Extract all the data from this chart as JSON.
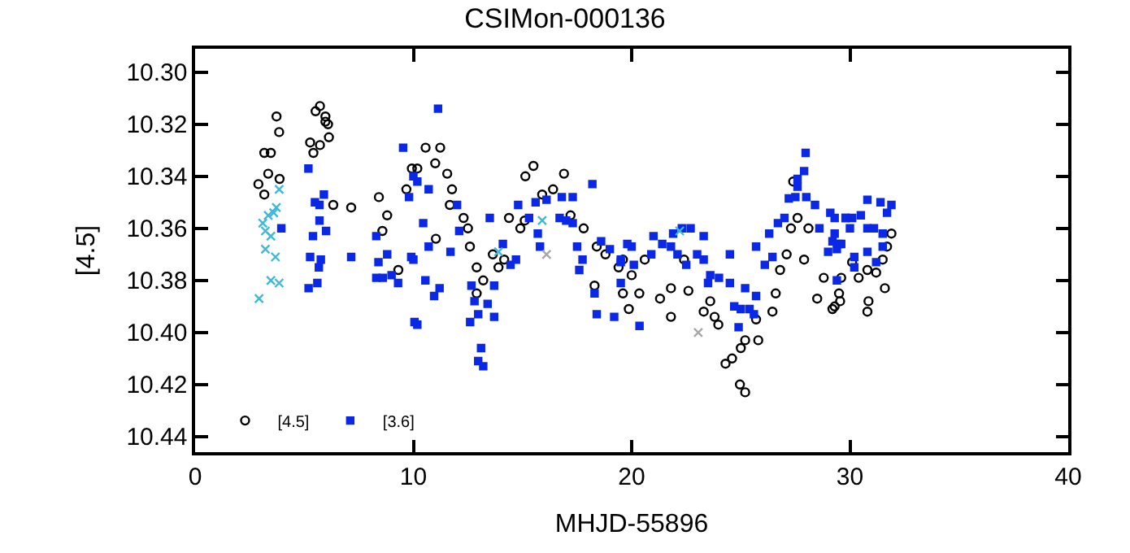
{
  "chart_data": {
    "type": "scatter",
    "title": "CSIMon-000136",
    "xlabel": "MHJD-55896",
    "ylabel": "[4.5]",
    "xlim": [
      0,
      40
    ],
    "xticks": [
      0,
      10,
      20,
      30,
      40
    ],
    "ylim": [
      10.446,
      10.291
    ],
    "yticks": [
      {
        "value": 10.3,
        "label": "10.30"
      },
      {
        "value": 10.32,
        "label": "10.32"
      },
      {
        "value": 10.34,
        "label": "10.34"
      },
      {
        "value": 10.36,
        "label": "10.36"
      },
      {
        "value": 10.38,
        "label": "10.38"
      },
      {
        "value": 10.4,
        "label": "10.40"
      },
      {
        "value": 10.42,
        "label": "10.42"
      },
      {
        "value": 10.44,
        "label": "10.44"
      }
    ],
    "legend": "bottom left",
    "series": [
      {
        "name": "[4.5]",
        "color": "#000000",
        "marker": "circle",
        "x": [
          3.73,
          3.85,
          3.17,
          3.47,
          3.35,
          3.17,
          2.9,
          3.87,
          5.72,
          5.52,
          5.97,
          6.09,
          5.97,
          6.13,
          5.27,
          5.42,
          5.72,
          6.33,
          7.15,
          8.42,
          8.8,
          8.58,
          9.31,
          9.68,
          9.93,
          10.56,
          11.23,
          11.0,
          10.18,
          11.55,
          11.77,
          11.67,
          12.3,
          12.5,
          11.03,
          12.59,
          12.9,
          12.9,
          13.2,
          13.64,
          14.16,
          13.9,
          14.38,
          14.9,
          15.1,
          15.13,
          15.5,
          16.4,
          16.9,
          15.9,
          17.2,
          17.8,
          18.4,
          18.8,
          18.3,
          19.4,
          19.87,
          19.6,
          19.6,
          20.0,
          20.35,
          20.6,
          21.3,
          21.8,
          21.8,
          22.4,
          22.6,
          23.3,
          23.97,
          23.6,
          23.8,
          24.3,
          24.6,
          25.0,
          25.2,
          25.8,
          24.96,
          25.2,
          25.7,
          26.45,
          26.6,
          26.8,
          27.1,
          27.3,
          27.6,
          27.4,
          28.1,
          27.9,
          28.5,
          28.8,
          29.3,
          29.5,
          29.2,
          29.55,
          29.6,
          30.1,
          30.4,
          30.8,
          31.2,
          31.5,
          31.7,
          31.9,
          30.85,
          30.8,
          31.6
        ],
        "values": [
          10.317,
          10.323,
          10.331,
          10.331,
          10.339,
          10.347,
          10.343,
          10.341,
          10.313,
          10.315,
          10.317,
          10.32,
          10.319,
          10.325,
          10.327,
          10.331,
          10.328,
          10.351,
          10.352,
          10.348,
          10.355,
          10.361,
          10.376,
          10.345,
          10.337,
          10.329,
          10.329,
          10.335,
          10.337,
          10.339,
          10.345,
          10.351,
          10.356,
          10.36,
          10.364,
          10.367,
          10.375,
          10.385,
          10.38,
          10.37,
          10.372,
          10.375,
          10.356,
          10.36,
          10.357,
          10.34,
          10.336,
          10.345,
          10.339,
          10.347,
          10.355,
          10.36,
          10.367,
          10.37,
          10.382,
          10.375,
          10.391,
          10.385,
          10.372,
          10.378,
          10.385,
          10.372,
          10.387,
          10.383,
          10.394,
          10.372,
          10.384,
          10.392,
          10.397,
          10.388,
          10.394,
          10.412,
          10.41,
          10.406,
          10.403,
          10.403,
          10.42,
          10.423,
          10.395,
          10.392,
          10.385,
          10.376,
          10.37,
          10.36,
          10.356,
          10.342,
          10.36,
          10.372,
          10.387,
          10.379,
          10.39,
          10.385,
          10.391,
          10.388,
          10.379,
          10.373,
          10.379,
          10.376,
          10.377,
          10.372,
          10.367,
          10.362,
          10.388,
          10.392,
          10.383
        ]
      },
      {
        "name": "[3.6]",
        "color": "#0a28e6",
        "marker": "square",
        "x": [
          5.19,
          5.49,
          5.7,
          5.9,
          5.7,
          6.0,
          5.4,
          3.95,
          5.27,
          5.76,
          5.67,
          5.2,
          5.6,
          7.15,
          8.3,
          8.4,
          8.8,
          9.0,
          8.6,
          8.3,
          9.3,
          9.53,
          10.05,
          9.9,
          9.8,
          10.0,
          11.13,
          10.18,
          10.7,
          10.45,
          10.0,
          10.7,
          10.55,
          11.2,
          10.95,
          10.18,
          11.7,
          12.0,
          12.1,
          12.66,
          12.8,
          13.4,
          12.97,
          12.6,
          13.7,
          13.7,
          13.1,
          12.97,
          13.2,
          13.5,
          14.1,
          14.45,
          14.7,
          14.8,
          15.3,
          15.7,
          15.6,
          15.8,
          16.1,
          16.8,
          16.7,
          17.0,
          17.3,
          18.2,
          17.3,
          17.5,
          17.75,
          17.6,
          18.3,
          18.4,
          19.2,
          18.6,
          19.0,
          19.5,
          19.8,
          19.5,
          19.5,
          20.0,
          20.1,
          20.36,
          20.9,
          21.0,
          21.4,
          21.8,
          21.9,
          22.3,
          22.7,
          22.1,
          22.5,
          23.0,
          23.3,
          23.3,
          23.6,
          23.5,
          24.0,
          24.5,
          24.5,
          24.7,
          25.0,
          25.4,
          25.6,
          25.2,
          25.7,
          24.9,
          25.7,
          26.1,
          26.45,
          26.3,
          26.7,
          27.0,
          27.2,
          27.5,
          28.0,
          27.6,
          27.9,
          27.6,
          27.97,
          28.4,
          28.6,
          29.1,
          29.3,
          29.5,
          29.8,
          29.0,
          29.4,
          29.3,
          29.2,
          29.8,
          30.1,
          30.0,
          30.5,
          30.8,
          30.8,
          31.1,
          31.4,
          31.9,
          31.7,
          31.5,
          29.4,
          29.6,
          30.2,
          30.8,
          31.2,
          31.5,
          30.2
        ],
        "values": [
          10.337,
          10.35,
          10.351,
          10.347,
          10.357,
          10.361,
          10.363,
          10.36,
          10.371,
          10.372,
          10.375,
          10.383,
          10.381,
          10.371,
          10.363,
          10.373,
          10.37,
          10.378,
          10.379,
          10.379,
          10.381,
          10.329,
          10.396,
          10.371,
          10.348,
          10.34,
          10.314,
          10.342,
          10.345,
          10.358,
          10.372,
          10.367,
          10.38,
          10.383,
          10.386,
          10.397,
          10.369,
          10.351,
          10.361,
          10.382,
          10.388,
          10.389,
          10.393,
          10.396,
          10.382,
          10.394,
          10.406,
          10.411,
          10.413,
          10.356,
          10.366,
          10.374,
          10.372,
          10.351,
          10.356,
          10.362,
          10.35,
          10.367,
          10.349,
          10.348,
          10.356,
          10.357,
          10.348,
          10.343,
          10.358,
          10.367,
          10.372,
          10.376,
          10.385,
          10.393,
          10.394,
          10.365,
          10.368,
          10.373,
          10.366,
          10.381,
          10.372,
          10.367,
          10.374,
          10.3975,
          10.37,
          10.363,
          10.366,
          10.367,
          10.362,
          10.36,
          10.36,
          10.37,
          10.374,
          10.37,
          10.363,
          10.372,
          10.378,
          10.381,
          10.379,
          10.37,
          10.381,
          10.39,
          10.391,
          10.391,
          10.393,
          10.383,
          10.386,
          10.398,
          10.367,
          10.374,
          10.371,
          10.362,
          10.358,
          10.356,
          10.3485,
          10.348,
          10.348,
          10.344,
          10.338,
          10.341,
          10.331,
          10.351,
          10.36,
          10.354,
          10.362,
          10.366,
          10.356,
          10.369,
          10.38,
          10.356,
          10.365,
          10.356,
          10.356,
          10.36,
          10.355,
          10.349,
          10.36,
          10.36,
          10.35,
          10.351,
          10.354,
          10.362,
          10.368,
          10.366,
          10.371,
          10.369,
          10.373,
          10.367,
          10.375
        ]
      },
      {
        "color": "#40b8d8",
        "marker": "cross",
        "x": [
          3.85,
          3.72,
          3.6,
          3.35,
          3.1,
          3.22,
          3.47,
          3.22,
          3.68,
          3.47,
          3.85,
          2.93,
          22.2,
          13.9,
          15.9
        ],
        "values": [
          10.345,
          10.352,
          10.354,
          10.355,
          10.358,
          10.361,
          10.363,
          10.368,
          10.371,
          10.38,
          10.381,
          10.387,
          10.361,
          10.369,
          10.357
        ]
      },
      {
        "color": "#a8a8a8",
        "marker": "cross",
        "x": [
          16.1,
          23.05
        ],
        "values": [
          10.37,
          10.4
        ]
      }
    ]
  }
}
